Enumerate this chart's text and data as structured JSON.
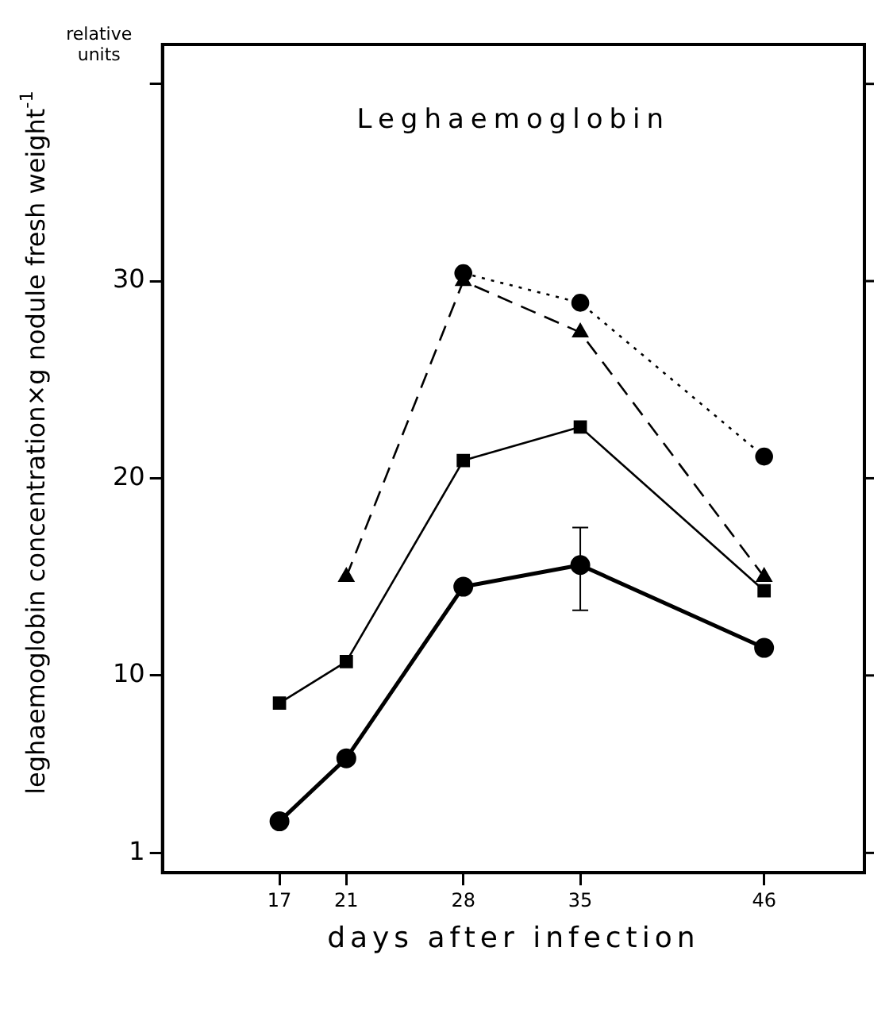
{
  "chart_data": {
    "type": "line",
    "title": "Leghaemoglobin",
    "xlabel": "days after infection",
    "ylabel": "leghaemoglobin concentration×g nodule fresh weight$^{-1}$",
    "annotations": [
      "relative units"
    ],
    "x": [
      17,
      21,
      28,
      35,
      46
    ],
    "xlim": [
      10,
      52
    ],
    "xticks": [
      17,
      21,
      28,
      35,
      46
    ],
    "ylim": [
      0,
      42
    ],
    "yticks": [
      1,
      10,
      20,
      30,
      {
        "value": 40,
        "label": null
      }
    ],
    "grid": false,
    "legend": false,
    "series": [
      {
        "color": "#000000",
        "marker": "circle",
        "line_style": "solid",
        "values": [
          2.6,
          5.8,
          14.5,
          15.6,
          11.4
        ],
        "errors": [
          null,
          null,
          null,
          [
            13.3,
            17.5
          ],
          null
        ]
      },
      {
        "color": "#000000",
        "marker": "square",
        "line_style": "solid",
        "values": [
          8.6,
          10.7,
          20.9,
          22.6,
          14.3
        ]
      },
      {
        "color": "#000000",
        "marker": "triangle",
        "line_style": "dashed",
        "values": [
          null,
          15.0,
          30.0,
          27.4,
          15.0
        ]
      },
      {
        "color": "#000000",
        "marker": "circle",
        "line_style": "dotted",
        "values": [
          null,
          null,
          30.4,
          28.9,
          21.1
        ]
      }
    ]
  }
}
